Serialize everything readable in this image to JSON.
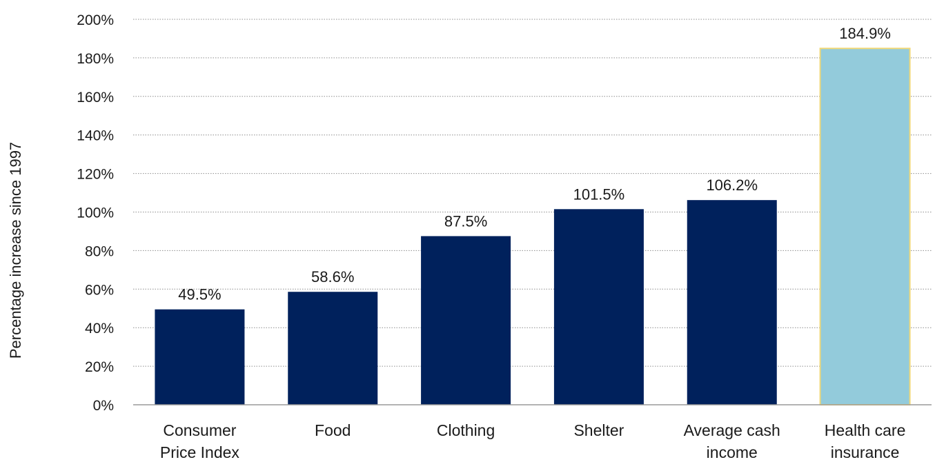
{
  "chart_data": {
    "type": "bar",
    "categories": [
      [
        "Consumer",
        "Price Index"
      ],
      [
        "Food"
      ],
      [
        "Clothing"
      ],
      [
        "Shelter"
      ],
      [
        "Average cash",
        "income"
      ],
      [
        "Health care",
        "insurance"
      ]
    ],
    "values": [
      49.5,
      58.6,
      87.5,
      101.5,
      106.2,
      184.9
    ],
    "data_labels": [
      "49.5%",
      "58.6%",
      "87.5%",
      "101.5%",
      "106.2%",
      "184.9%"
    ],
    "bar_colors": [
      "#00215c",
      "#00215c",
      "#00215c",
      "#00215c",
      "#00215c",
      "#93cbdb"
    ],
    "highlight_border_color": "#f0d878",
    "ylabel": "Percentage increase since 1997",
    "ylim": [
      0,
      200
    ],
    "yticks": [
      0,
      20,
      40,
      60,
      80,
      100,
      120,
      140,
      160,
      180,
      200
    ],
    "ytick_labels": [
      "0%",
      "20%",
      "40%",
      "60%",
      "80%",
      "100%",
      "120%",
      "140%",
      "160%",
      "180%",
      "200%"
    ],
    "grid": true,
    "legend": "none"
  }
}
